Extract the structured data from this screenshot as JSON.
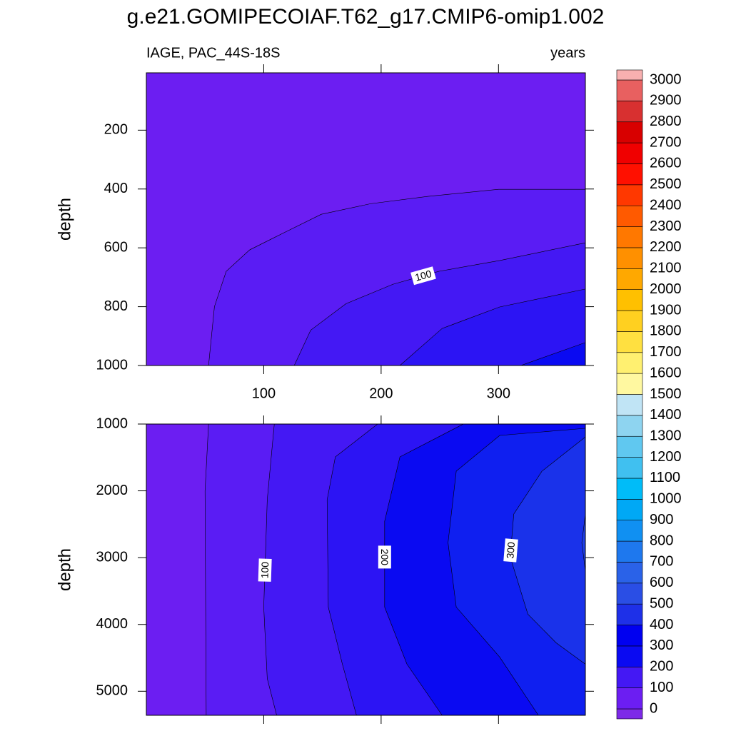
{
  "title": "g.e21.GOMIPECOIAF.T62_g17.CMIP6-omip1.002",
  "chart_data": [
    {
      "type": "contour",
      "left_string": "IAGE, PAC_44S-18S",
      "right_string": "years",
      "ylabel": "depth",
      "xlim": [
        0,
        374
      ],
      "ylim": [
        1000,
        5
      ],
      "xticks": [
        100,
        200,
        300
      ],
      "yticks": [
        200,
        400,
        600,
        800,
        1000
      ],
      "x_tick_labels": true,
      "background_color": "#6c1ef2",
      "contours": [
        {
          "level": 50,
          "color": "#5a1cf4",
          "labeled": false,
          "x": [
            53,
            58,
            68,
            88,
            118,
            149,
            191,
            240,
            300,
            374
          ],
          "y": [
            1000,
            800,
            680,
            607,
            547,
            486,
            450,
            425,
            401,
            401
          ]
        },
        {
          "level": 100,
          "color": "#4418f4",
          "labeled": true,
          "x": [
            126,
            140,
            170,
            210,
            249,
            301,
            374
          ],
          "y": [
            1000,
            880,
            790,
            724,
            680,
            643,
            583
          ]
        },
        {
          "level": 150,
          "color": "#2c14f4",
          "labeled": false,
          "x": [
            216,
            252,
            301,
            374
          ],
          "y": [
            1000,
            874,
            801,
            740
          ]
        },
        {
          "level": 200,
          "color": "#0a0af2",
          "labeled": false,
          "x": [
            319,
            374
          ],
          "y": [
            1000,
            922
          ]
        }
      ]
    },
    {
      "type": "contour",
      "ylabel": "depth",
      "xlim": [
        0,
        374
      ],
      "ylim": [
        5360,
        1000
      ],
      "xticks": [
        100,
        200,
        300
      ],
      "yticks": [
        1000,
        2000,
        3000,
        4000,
        5000
      ],
      "x_tick_labels": false,
      "background_color": "#6c1ef2",
      "contours": [
        {
          "level": 50,
          "color": "#5a1cf4",
          "labeled": false,
          "x": [
            53,
            50,
            51
          ],
          "y": [
            1000,
            2000,
            5360
          ]
        },
        {
          "level": 100,
          "color": "#4418f4",
          "labeled": true,
          "x": [
            109,
            103,
            100,
            103,
            111
          ],
          "y": [
            1000,
            2130,
            3740,
            4810,
            5360
          ]
        },
        {
          "level": 150,
          "color": "#2c14f4",
          "labeled": false,
          "x": [
            197,
            161,
            154,
            155,
            167,
            179
          ],
          "y": [
            1000,
            1492,
            2134,
            3740,
            4595,
            5360
          ]
        },
        {
          "level": 200,
          "color": "#0a0af2",
          "labeled": true,
          "x": [
            270,
            216,
            203,
            203,
            222,
            252
          ],
          "y": [
            1000,
            1492,
            2455,
            3740,
            4595,
            5360
          ]
        },
        {
          "level": 250,
          "color": "#0f1ff0",
          "labeled": false,
          "x": [
            374,
            301,
            264,
            257,
            264,
            301,
            334
          ],
          "y": [
            1064,
            1171,
            1706,
            2776,
            3740,
            4488,
            5360
          ]
        },
        {
          "level": 300,
          "color": "#1a32ea",
          "labeled": true,
          "x": [
            374,
            337,
            313,
            310,
            325,
            349,
            374
          ],
          "y": [
            1193,
            1706,
            2348,
            2990,
            3846,
            4274,
            4595
          ]
        },
        {
          "level": 350,
          "color": "#2040e8",
          "labeled": false,
          "x": [
            374,
            371,
            374
          ],
          "y": [
            2348,
            2776,
            3200
          ]
        }
      ]
    }
  ],
  "colorbar": {
    "levels": [
      0,
      100,
      200,
      300,
      400,
      500,
      600,
      700,
      800,
      900,
      1000,
      1100,
      1200,
      1300,
      1400,
      1500,
      1600,
      1700,
      1800,
      1900,
      2000,
      2100,
      2200,
      2300,
      2400,
      2500,
      2600,
      2700,
      2800,
      2900,
      3000
    ],
    "colors": [
      "#7d2ae8",
      "#6c1ef2",
      "#4418f4",
      "#0a0af2",
      "#0000f0",
      "#1e30e8",
      "#2a4ee5",
      "#2a62e8",
      "#1e78ee",
      "#1090f2",
      "#00a8f5",
      "#00bcf8",
      "#40c0f0",
      "#60c8f0",
      "#8ed4f0",
      "#c0e4f5",
      "#fff8a0",
      "#fff070",
      "#ffe040",
      "#ffd020",
      "#ffc000",
      "#ffa800",
      "#ff9000",
      "#ff7800",
      "#ff5a00",
      "#ff3800",
      "#ff1000",
      "#f00000",
      "#d80000",
      "#d83030",
      "#e86060",
      "#f8b0b0"
    ]
  }
}
